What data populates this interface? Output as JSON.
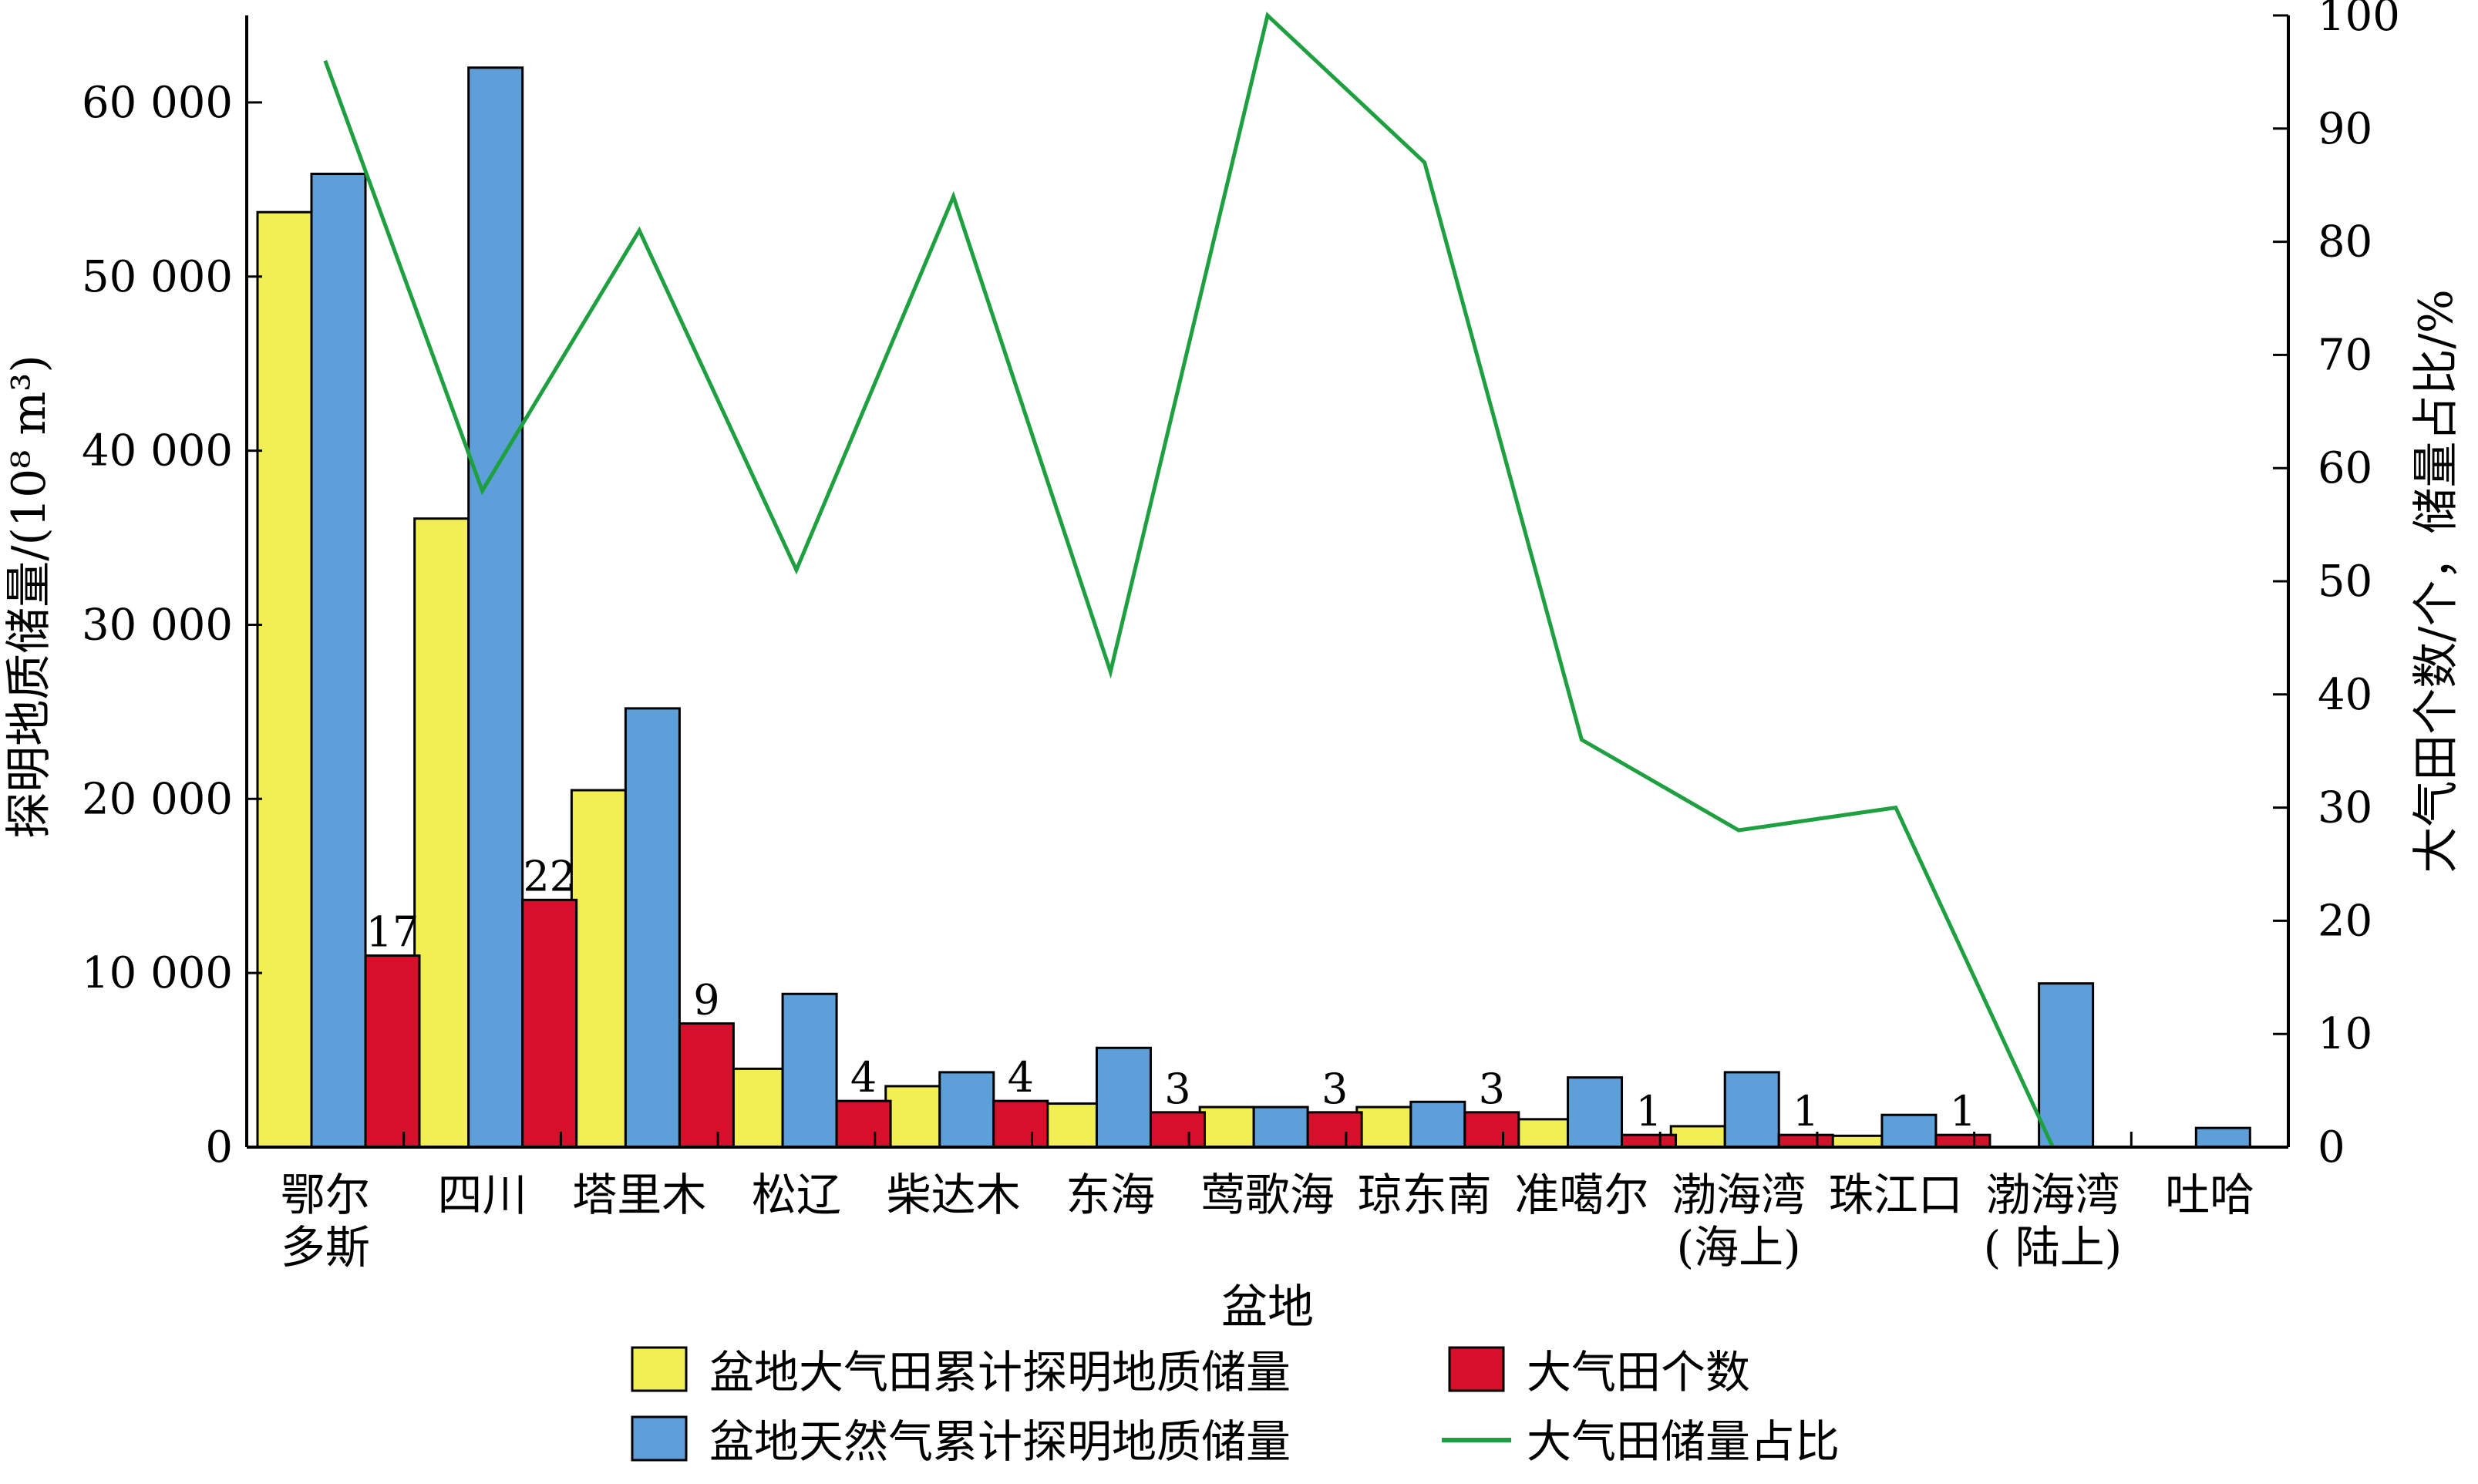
{
  "chart_data": {
    "type": "bar",
    "xlabel": "盆地",
    "ylabel_left": "探明地质储量/(10⁸ m³)",
    "ylabel_right": "大气田个数/个，储量占比/%",
    "categories": [
      {
        "line1": "鄂尔",
        "line2": "多斯"
      },
      {
        "line1": "四川",
        "line2": ""
      },
      {
        "line1": "塔里木",
        "line2": ""
      },
      {
        "line1": "松辽",
        "line2": ""
      },
      {
        "line1": "柴达木",
        "line2": ""
      },
      {
        "line1": "东海",
        "line2": ""
      },
      {
        "line1": "莺歌海",
        "line2": ""
      },
      {
        "line1": "琼东南",
        "line2": ""
      },
      {
        "line1": "准噶尔",
        "line2": ""
      },
      {
        "line1": "渤海湾",
        "line2": "(海上)"
      },
      {
        "line1": "珠江口",
        "line2": ""
      },
      {
        "line1": "渤海湾",
        "line2": "( 陆上)"
      },
      {
        "line1": "吐哈",
        "line2": ""
      }
    ],
    "left_axis": {
      "min": 0,
      "max": 65000,
      "ticks": [
        0,
        10000,
        20000,
        30000,
        40000,
        50000,
        60000
      ],
      "tick_labels": [
        "0",
        "10 000",
        "20 000",
        "30 000",
        "40 000",
        "50 000",
        "60 000"
      ]
    },
    "right_axis": {
      "min": 0,
      "max": 100,
      "ticks": [
        0,
        10,
        20,
        30,
        40,
        50,
        60,
        70,
        80,
        90,
        100
      ],
      "tick_labels": [
        "0",
        "10",
        "20",
        "30",
        "40",
        "50",
        "60",
        "70",
        "80",
        "90",
        "100"
      ]
    },
    "series": [
      {
        "name": "盆地大气田累计探明地质储量",
        "kind": "bar",
        "axis": "left",
        "color": "#f2ef55",
        "values": [
          53700,
          36100,
          20500,
          4500,
          3500,
          2500,
          2300,
          2300,
          1600,
          1200,
          650,
          0,
          0
        ]
      },
      {
        "name": "盆地天然气累计探明地质储量",
        "kind": "bar",
        "axis": "left",
        "color": "#5d9fd8",
        "values": [
          55900,
          62000,
          25200,
          8800,
          4300,
          5700,
          2300,
          2600,
          4000,
          4300,
          1850,
          9400,
          1100
        ]
      },
      {
        "name": "大气田个数",
        "kind": "bar",
        "axis": "left",
        "color": "#d6102a",
        "values": [
          11000,
          14200,
          7100,
          2650,
          2650,
          2000,
          2000,
          2000,
          700,
          700,
          700,
          0,
          0
        ],
        "counts": [
          17,
          22,
          9,
          4,
          4,
          3,
          3,
          3,
          1,
          1,
          1,
          null,
          null
        ],
        "labels": [
          "17",
          "22",
          "9",
          "4",
          "4",
          "3",
          "3",
          "3",
          "1",
          "1",
          "1",
          "",
          ""
        ]
      },
      {
        "name": "大气田储量占比",
        "kind": "line",
        "axis": "right",
        "color": "#1fa040",
        "values": [
          96,
          58,
          81,
          51,
          84,
          42,
          100,
          87,
          36,
          28,
          30,
          0,
          null
        ]
      }
    ],
    "legend": [
      {
        "label": "盆地大气田累计探明地质储量",
        "swatch": "box",
        "color": "#f2ef55"
      },
      {
        "label": "大气田个数",
        "swatch": "box",
        "color": "#d6102a"
      },
      {
        "label": "盆地天然气累计探明地质储量",
        "swatch": "box",
        "color": "#5d9fd8"
      },
      {
        "label": "大气田储量占比",
        "swatch": "line",
        "color": "#1fa040"
      }
    ],
    "legend_position": "bottom-center",
    "grid": false
  }
}
